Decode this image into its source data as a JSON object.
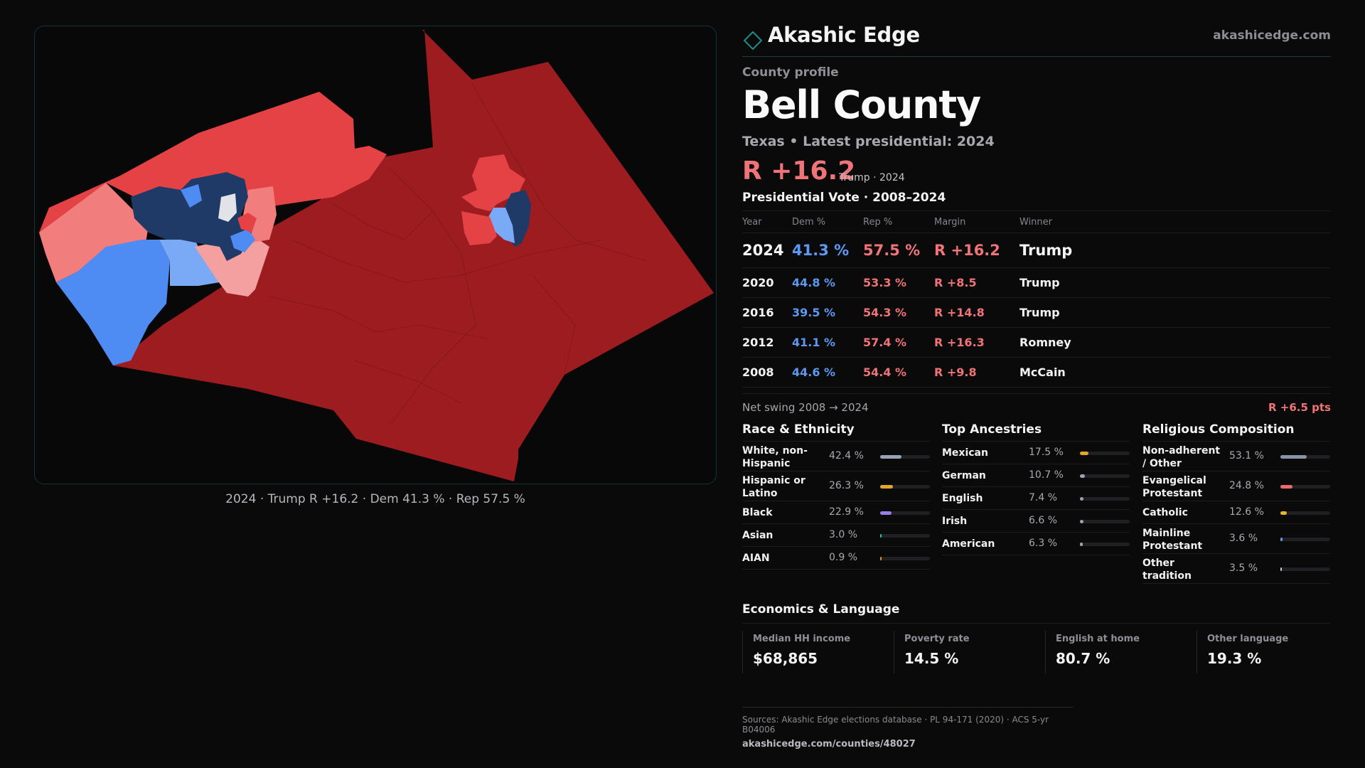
{
  "map": {
    "caption": "2024 · Trump R +16.2 · Dem 41.3 % · Rep 57.5 %",
    "colors": {
      "strong_rep": "#9d1c20",
      "lean_rep": "#e54246",
      "light_rep": "#f27d7d",
      "pale_rep": "#f4a0a0",
      "strong_dem": "#1f3a66",
      "lean_dem": "#4e8bf2",
      "light_dem": "#7aaaf6",
      "neutral": "#e1e3e8"
    }
  },
  "brand": {
    "name": "Akashic Edge",
    "url": "akashicedge.com",
    "icon": "diamond-logo-icon",
    "accent": "#1a8f8a"
  },
  "profile": {
    "eyebrow": "County profile",
    "title": "Bell County",
    "subtitle": "Texas • Latest presidential: 2024",
    "headline_margin": "R +16.2",
    "headline_tag": "Trump · 2024"
  },
  "votes": {
    "heading": "Presidential Vote · 2008–2024",
    "columns": [
      "Year",
      "Dem %",
      "Rep %",
      "Margin",
      "Winner"
    ],
    "rows": [
      {
        "year": "2024",
        "dem": "41.3 %",
        "rep": "57.5 %",
        "margin": "R +16.2",
        "winner": "Trump"
      },
      {
        "year": "2020",
        "dem": "44.8 %",
        "rep": "53.3 %",
        "margin": "R +8.5",
        "winner": "Trump"
      },
      {
        "year": "2016",
        "dem": "39.5 %",
        "rep": "54.3 %",
        "margin": "R +14.8",
        "winner": "Trump"
      },
      {
        "year": "2012",
        "dem": "41.1 %",
        "rep": "57.4 %",
        "margin": "R +16.3",
        "winner": "Romney"
      },
      {
        "year": "2008",
        "dem": "44.6 %",
        "rep": "54.4 %",
        "margin": "R +9.8",
        "winner": "McCain"
      }
    ],
    "swing_label": "Net swing 2008 → 2024",
    "swing_value": "R +6.5 pts",
    "dem_color": "#5d99f3",
    "rep_color": "#f07477"
  },
  "race": {
    "heading": "Race & Ethnicity",
    "rows": [
      {
        "label": "White, non-Hispanic",
        "value": "42.4 %",
        "pct": 42.4,
        "color": "#9aa3b5"
      },
      {
        "label": "Hispanic or Latino",
        "value": "26.3 %",
        "pct": 26.3,
        "color": "#e3a52a"
      },
      {
        "label": "Black",
        "value": "22.9 %",
        "pct": 22.9,
        "color": "#9d7ee8"
      },
      {
        "label": "Asian",
        "value": "3.0 %",
        "pct": 3.0,
        "color": "#27c2b4"
      },
      {
        "label": "AIAN",
        "value": "0.9 %",
        "pct": 0.9,
        "color": "#e08a3a"
      }
    ]
  },
  "ancestry": {
    "heading": "Top Ancestries",
    "rows": [
      {
        "label": "Mexican",
        "value": "17.5 %",
        "pct": 17.5,
        "color": "#e3a52a"
      },
      {
        "label": "German",
        "value": "10.7 %",
        "pct": 10.7,
        "color": "#9aa3b5"
      },
      {
        "label": "English",
        "value": "7.4 %",
        "pct": 7.4,
        "color": "#9aa3b5"
      },
      {
        "label": "Irish",
        "value": "6.6 %",
        "pct": 6.6,
        "color": "#9aa3b5"
      },
      {
        "label": "American",
        "value": "6.3 %",
        "pct": 6.3,
        "color": "#9aa3b5"
      }
    ]
  },
  "religion": {
    "heading": "Religious Composition",
    "rows": [
      {
        "label": "Non-adherent / Other",
        "value": "53.1 %",
        "pct": 53.1,
        "color": "#8b93a6"
      },
      {
        "label": "Evangelical Protestant",
        "value": "24.8 %",
        "pct": 24.8,
        "color": "#ec6a6e"
      },
      {
        "label": "Catholic",
        "value": "12.6 %",
        "pct": 12.6,
        "color": "#e3b82a"
      },
      {
        "label": "Mainline Protestant",
        "value": "3.6 %",
        "pct": 3.6,
        "color": "#5d99f3"
      },
      {
        "label": "Other tradition",
        "value": "3.5 %",
        "pct": 3.5,
        "color": "#c9c9cf"
      }
    ]
  },
  "economics": {
    "heading": "Economics & Language",
    "cards": [
      {
        "label": "Median HH income",
        "value": "$68,865"
      },
      {
        "label": "Poverty rate",
        "value": "14.5 %"
      },
      {
        "label": "English at home",
        "value": "80.7 %"
      },
      {
        "label": "Other language",
        "value": "19.3 %"
      }
    ]
  },
  "sources": {
    "line1": "Sources: Akashic Edge elections database · PL 94-171 (2020) · ACS 5-yr B04006",
    "line2": "akashicedge.com/counties/48027"
  }
}
